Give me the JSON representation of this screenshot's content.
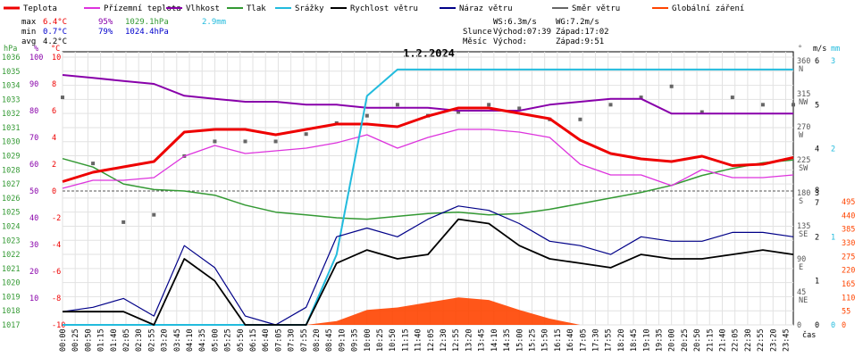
{
  "chart_data": {
    "type": "line",
    "title": "1.2.2024",
    "legend": [
      {
        "name": "Teplota",
        "color": "#ee0000"
      },
      {
        "name": "Přízemní teplota",
        "color": "#dd33dd"
      },
      {
        "name": "Vlhkost",
        "color": "#8800aa"
      },
      {
        "name": "Tlak",
        "color": "#339933"
      },
      {
        "name": "Srážky",
        "color": "#22bbdd"
      },
      {
        "name": "Rychlost větru",
        "color": "#000000"
      },
      {
        "name": "Náraz větru",
        "color": "#000088"
      },
      {
        "name": "Směr větru",
        "color": "#666666"
      },
      {
        "name": "Globální záření",
        "color": "#ff4400"
      }
    ],
    "stats": {
      "max_label": "max",
      "max_temp": "6.4°C",
      "max_hum": "95%",
      "max_press": "1029.1hPa",
      "max_rain": "2.9mm",
      "min_label": "min",
      "min_temp": "0.7°C",
      "min_hum": "79%",
      "min_press": "1024.4hPa",
      "avg_label": "avg",
      "avg_temp": "4.2°C",
      "ws": "WS:6.3m/s",
      "wg": "WG:7.2m/s",
      "slunce": "Slunce",
      "slunce_vychod": "Východ:07:39",
      "slunce_zapad": "Západ:17:02",
      "mesic": "Měsíc",
      "mesic_vychod": "Východ:",
      "mesic_zapad": "Západ:9:51"
    },
    "axes": {
      "press_unit": "hPa",
      "hum_unit": "%",
      "temp_unit": "°C",
      "dir_unit": "°",
      "wind_unit": "m/s",
      "rain_unit": "mm",
      "time_label": "čas",
      "press_ticks": [
        "1036",
        "1035",
        "1034",
        "1033",
        "1032",
        "1031",
        "1030",
        "1029",
        "1028",
        "1027",
        "1026",
        "1025",
        "1024",
        "1023",
        "1022",
        "1021",
        "1020",
        "1019",
        "1018",
        "1017"
      ],
      "hum_ticks": [
        "100",
        "90",
        "80",
        "70",
        "60",
        "50",
        "40",
        "30",
        "20",
        "10"
      ],
      "temp_ticks": [
        "10",
        "8",
        "6",
        "4",
        "2",
        "0",
        "-2",
        "-4",
        "-6",
        "-8",
        "-10"
      ],
      "dir_ticks": [
        "360",
        "315",
        "270",
        "225",
        "180",
        "135",
        "90",
        "45",
        "0"
      ],
      "dir_names": [
        "N",
        "NW",
        "W",
        "SW",
        "S",
        "SE",
        "E",
        "NE"
      ],
      "wind_ticks": [
        "6",
        "5",
        "4",
        "3",
        "2",
        "1",
        "0"
      ],
      "wind_ticks_upper": [
        "8",
        "7"
      ],
      "rain_ticks": [
        "3",
        "2",
        "1",
        "0"
      ],
      "rad_ticks": [
        "495",
        "440",
        "385",
        "330",
        "275",
        "220",
        "165",
        "110",
        "55",
        "0"
      ],
      "xticks": [
        "00:00",
        "00:25",
        "00:50",
        "01:15",
        "01:40",
        "02:05",
        "02:30",
        "02:55",
        "03:20",
        "03:45",
        "04:10",
        "04:35",
        "05:00",
        "05:25",
        "05:50",
        "06:15",
        "06:40",
        "07:05",
        "07:30",
        "07:55",
        "08:20",
        "08:45",
        "09:10",
        "09:35",
        "10:00",
        "10:25",
        "10:50",
        "11:15",
        "11:40",
        "12:05",
        "12:30",
        "12:55",
        "13:20",
        "13:45",
        "14:10",
        "14:35",
        "15:00",
        "15:25",
        "15:50",
        "16:15",
        "16:40",
        "17:05",
        "17:30",
        "17:55",
        "18:20",
        "18:45",
        "19:10",
        "19:35",
        "20:00",
        "20:25",
        "20:50",
        "21:15",
        "21:40",
        "22:05",
        "22:30",
        "22:55",
        "23:20",
        "23:45"
      ]
    },
    "x_hours": [
      0,
      1,
      2,
      3,
      4,
      5,
      6,
      7,
      8,
      9,
      10,
      11,
      12,
      13,
      14,
      15,
      16,
      17,
      18,
      19,
      20,
      21,
      22,
      23,
      24
    ],
    "series": [
      {
        "name": "Teplota",
        "unit": "°C",
        "values": [
          0.7,
          1.4,
          1.8,
          2.2,
          4.4,
          4.6,
          4.6,
          4.2,
          4.6,
          5.0,
          5.0,
          4.8,
          5.6,
          6.2,
          6.2,
          5.8,
          5.4,
          3.8,
          2.8,
          2.4,
          2.2,
          2.6,
          1.9,
          2.0,
          2.5
        ]
      },
      {
        "name": "Přízemní teplota",
        "unit": "°C",
        "values": [
          0.2,
          0.8,
          0.8,
          1.0,
          2.6,
          3.4,
          2.8,
          3.0,
          3.2,
          3.6,
          4.2,
          3.2,
          4.0,
          4.6,
          4.6,
          4.4,
          4.0,
          2.0,
          1.2,
          1.2,
          0.4,
          1.6,
          1.0,
          1.0,
          1.2
        ]
      },
      {
        "name": "Vlhkost",
        "unit": "%",
        "values": [
          94,
          93,
          92,
          91,
          87,
          86,
          85,
          85,
          84,
          84,
          83,
          83,
          83,
          82,
          82,
          82,
          84,
          85,
          86,
          86,
          81,
          81,
          81,
          81,
          81
        ]
      },
      {
        "name": "Tlak",
        "unit": "hPa",
        "values": [
          1028.8,
          1028.2,
          1027.0,
          1026.6,
          1026.5,
          1026.2,
          1025.5,
          1025.0,
          1024.8,
          1024.6,
          1024.5,
          1024.7,
          1024.9,
          1025.0,
          1024.8,
          1024.9,
          1025.2,
          1025.6,
          1026.0,
          1026.4,
          1026.9,
          1027.6,
          1028.1,
          1028.5,
          1028.7
        ]
      },
      {
        "name": "Srážky",
        "unit": "mm",
        "values": [
          0,
          0,
          0,
          0,
          0,
          0,
          0,
          0,
          0.0,
          0.8,
          2.6,
          2.9,
          2.9,
          2.9,
          2.9,
          2.9,
          2.9,
          2.9,
          2.9,
          2.9,
          2.9,
          2.9,
          2.9,
          2.9,
          2.9
        ]
      },
      {
        "name": "Rychlost větru",
        "unit": "m/s",
        "values": [
          0.3,
          0.3,
          0.3,
          0.0,
          1.5,
          1.0,
          0.0,
          0.0,
          0.0,
          1.4,
          1.7,
          1.5,
          1.6,
          2.4,
          2.3,
          1.8,
          1.5,
          1.4,
          1.3,
          1.6,
          1.5,
          1.5,
          1.6,
          1.7,
          1.6
        ]
      },
      {
        "name": "Náraz větru",
        "unit": "m/s",
        "values": [
          0.3,
          0.4,
          0.6,
          0.2,
          1.8,
          1.3,
          0.2,
          0.0,
          0.4,
          2.0,
          2.2,
          2.0,
          2.4,
          2.7,
          2.6,
          2.3,
          1.9,
          1.8,
          1.6,
          2.0,
          1.9,
          1.9,
          2.1,
          2.1,
          2.0
        ]
      },
      {
        "name": "Směr větru",
        "unit": "°",
        "values": [
          310,
          220,
          140,
          150,
          230,
          250,
          250,
          250,
          260,
          275,
          285,
          300,
          285,
          290,
          300,
          295,
          280,
          280,
          300,
          310,
          325,
          290,
          310,
          300,
          300
        ]
      },
      {
        "name": "Globální záření",
        "unit": "W/m²",
        "values": [
          0,
          0,
          0,
          0,
          0,
          0,
          0,
          0,
          0,
          15,
          60,
          70,
          90,
          110,
          100,
          60,
          25,
          0,
          0,
          0,
          0,
          0,
          0,
          0,
          0
        ]
      }
    ]
  }
}
